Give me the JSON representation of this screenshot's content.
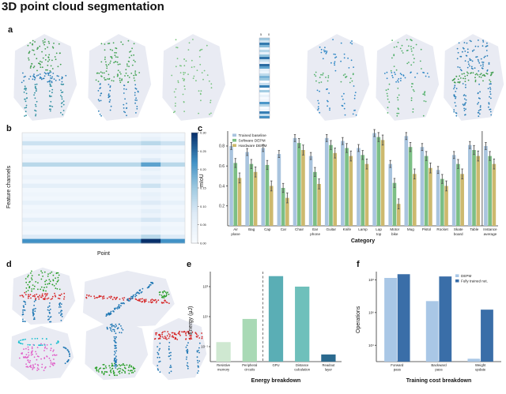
{
  "title": "3D point cloud segmentation",
  "panel_labels": {
    "a": "a",
    "b": "b",
    "c": "c",
    "d": "d",
    "e": "e",
    "f": "f"
  },
  "panel_a": {
    "colorbar_labels": [
      "5",
      "0"
    ],
    "thumbnails": [
      {
        "density": 1.0,
        "back": "#3f9d4e",
        "seat": "#2b7fb8",
        "legs": "#2f8fa0"
      },
      {
        "density": 0.8,
        "back": "#44a455",
        "seat": "#44a455",
        "legs": "#2b7fb8"
      },
      {
        "density": 0.35,
        "back": "#77c37f",
        "seat": "#77c37f",
        "legs": "#77c37f"
      },
      {
        "density": 0.45,
        "back": "#2d86c5",
        "seat": "#52b06a",
        "legs": "#2d86c5"
      },
      {
        "density": 0.5,
        "back": "#52b06a",
        "seat": "#2d86c5",
        "legs": "#52b06a"
      },
      {
        "density": 1.0,
        "back": "#2b7fb8",
        "seat": "#3f9d4e",
        "legs": "#2b7fb8"
      }
    ]
  },
  "panel_b": {
    "ylabel": "Feature channels",
    "xlabel": "Point",
    "colorbar_ticks": [
      "0.30",
      "0.25",
      "0.20",
      "0.15",
      "0.10",
      "0.05",
      "0.00"
    ]
  },
  "panel_d": {
    "items": [
      {
        "shape": "chair",
        "back": "#2ca02c",
        "seat": "#d62728",
        "legs": "#1f77b4"
      },
      {
        "shape": "plane",
        "body": "#d62728",
        "wings": "#1f77b4",
        "tail": "#2ca02c"
      },
      {
        "shape": "mug",
        "body": "#e060c8",
        "rim": "#17becf",
        "handle": "#1f77b4"
      },
      {
        "shape": "lamp",
        "base": "#2ca02c",
        "pole": "#1f77b4",
        "shade": "#1f77b4"
      },
      {
        "shape": "table",
        "top": "#d62728",
        "legs": "#1f77b4"
      }
    ]
  },
  "chart_data": [
    {
      "id": "miou_by_category",
      "type": "bar",
      "xlabel": "Category",
      "ylabel": "mIoU",
      "ylim": [
        0,
        0.95
      ],
      "yticks": [
        0.2,
        0.4,
        0.6,
        0.8
      ],
      "categories": [
        "Air\nplane",
        "Bag",
        "Cap",
        "Car",
        "Chair",
        "Ear\nphone",
        "Guitar",
        "Knife",
        "Lamp",
        "Lap\ntop",
        "Motor\nbike",
        "Mug",
        "Pistol",
        "Rocket",
        "Skate\nboard",
        "Table",
        "Instance\naverage"
      ],
      "separator_before_last": true,
      "legend_position": "upper-left",
      "series": [
        {
          "name": "Trained baseline",
          "color": "#a9c4de",
          "error": 0.035,
          "values": [
            0.8,
            0.74,
            0.78,
            0.72,
            0.88,
            0.7,
            0.88,
            0.85,
            0.78,
            0.93,
            0.62,
            0.9,
            0.79,
            0.56,
            0.71,
            0.81,
            0.8
          ]
        },
        {
          "name": "Software DEPM",
          "color": "#7cbf85",
          "error": 0.045,
          "values": [
            0.63,
            0.62,
            0.61,
            0.38,
            0.83,
            0.54,
            0.81,
            0.78,
            0.71,
            0.89,
            0.43,
            0.79,
            0.7,
            0.47,
            0.62,
            0.76,
            0.7
          ]
        },
        {
          "name": "Hardware DEPM",
          "color": "#cdb96e",
          "error": 0.05,
          "values": [
            0.48,
            0.54,
            0.4,
            0.28,
            0.76,
            0.42,
            0.73,
            0.7,
            0.62,
            0.86,
            0.22,
            0.52,
            0.58,
            0.4,
            0.52,
            0.7,
            0.62
          ]
        }
      ]
    },
    {
      "id": "energy_breakdown",
      "type": "bar",
      "log_scale": true,
      "xlabel": "Energy breakdown",
      "ylabel": "Energy (μJ)",
      "ylim_log": [
        -2,
        4
      ],
      "yticks": [
        {
          "label": "10⁻¹",
          "log": -1
        },
        {
          "label": "10¹",
          "log": 1
        },
        {
          "label": "10³",
          "log": 3
        }
      ],
      "categories": [
        "Resistive\nmemory",
        "Peripheral\ncircuits",
        "GPU",
        "Distance\ncalculation",
        "Readout\nlayer"
      ],
      "values": [
        0.2,
        7,
        5000,
        1000,
        0.03
      ],
      "colors": [
        "#cfe8d1",
        "#a9d9b5",
        "#5aaeb5",
        "#6fc0bb",
        "#2b6a8f"
      ],
      "dashed_separator_after": 1
    },
    {
      "id": "training_cost_breakdown",
      "type": "bar",
      "log_scale": true,
      "xlabel": "Training cost breakdown",
      "ylabel": "Operations",
      "ylim_log": [
        3,
        8.5
      ],
      "yticks": [
        {
          "label": "10⁴",
          "log": 4
        },
        {
          "label": "10⁶",
          "log": 6
        },
        {
          "label": "10⁸",
          "log": 8
        }
      ],
      "categories": [
        "Forward\npass",
        "Backward\npass",
        "Weight\nupdate"
      ],
      "legend_position": "upper-right",
      "series": [
        {
          "name": "DEPM",
          "color": "#a9c7e6",
          "values": [
            130000000.0,
            5000000.0,
            1500.0
          ]
        },
        {
          "name": "Fully trained net.",
          "color": "#3a6ea8",
          "values": [
            220000000.0,
            160000000.0,
            1500000.0
          ]
        }
      ]
    },
    {
      "id": "feature_channel_heatmap",
      "type": "heatmap",
      "vmin": 0.0,
      "vmax": 0.3,
      "rows": [
        [
          0.02,
          0.03
        ],
        [
          0.03,
          0.05
        ],
        [
          0.1,
          0.12
        ],
        [
          0.02,
          0.04
        ],
        [
          0.05,
          0.06
        ],
        [
          0.02,
          0.03
        ],
        [
          0.03,
          0.08
        ],
        [
          0.12,
          0.2
        ],
        [
          0.02,
          0.05
        ],
        [
          0.02,
          0.03
        ],
        [
          0.04,
          0.06
        ],
        [
          0.02,
          0.04
        ],
        [
          0.06,
          0.1
        ],
        [
          0.02,
          0.03
        ],
        [
          0.03,
          0.05
        ],
        [
          0.02,
          0.04
        ],
        [
          0.05,
          0.08
        ],
        [
          0.02,
          0.03
        ],
        [
          0.03,
          0.06
        ],
        [
          0.02,
          0.04
        ],
        [
          0.06,
          0.09
        ],
        [
          0.02,
          0.03
        ],
        [
          0.03,
          0.05
        ],
        [
          0.02,
          0.04
        ],
        [
          0.08,
          0.12
        ],
        [
          0.22,
          0.3
        ]
      ]
    }
  ]
}
